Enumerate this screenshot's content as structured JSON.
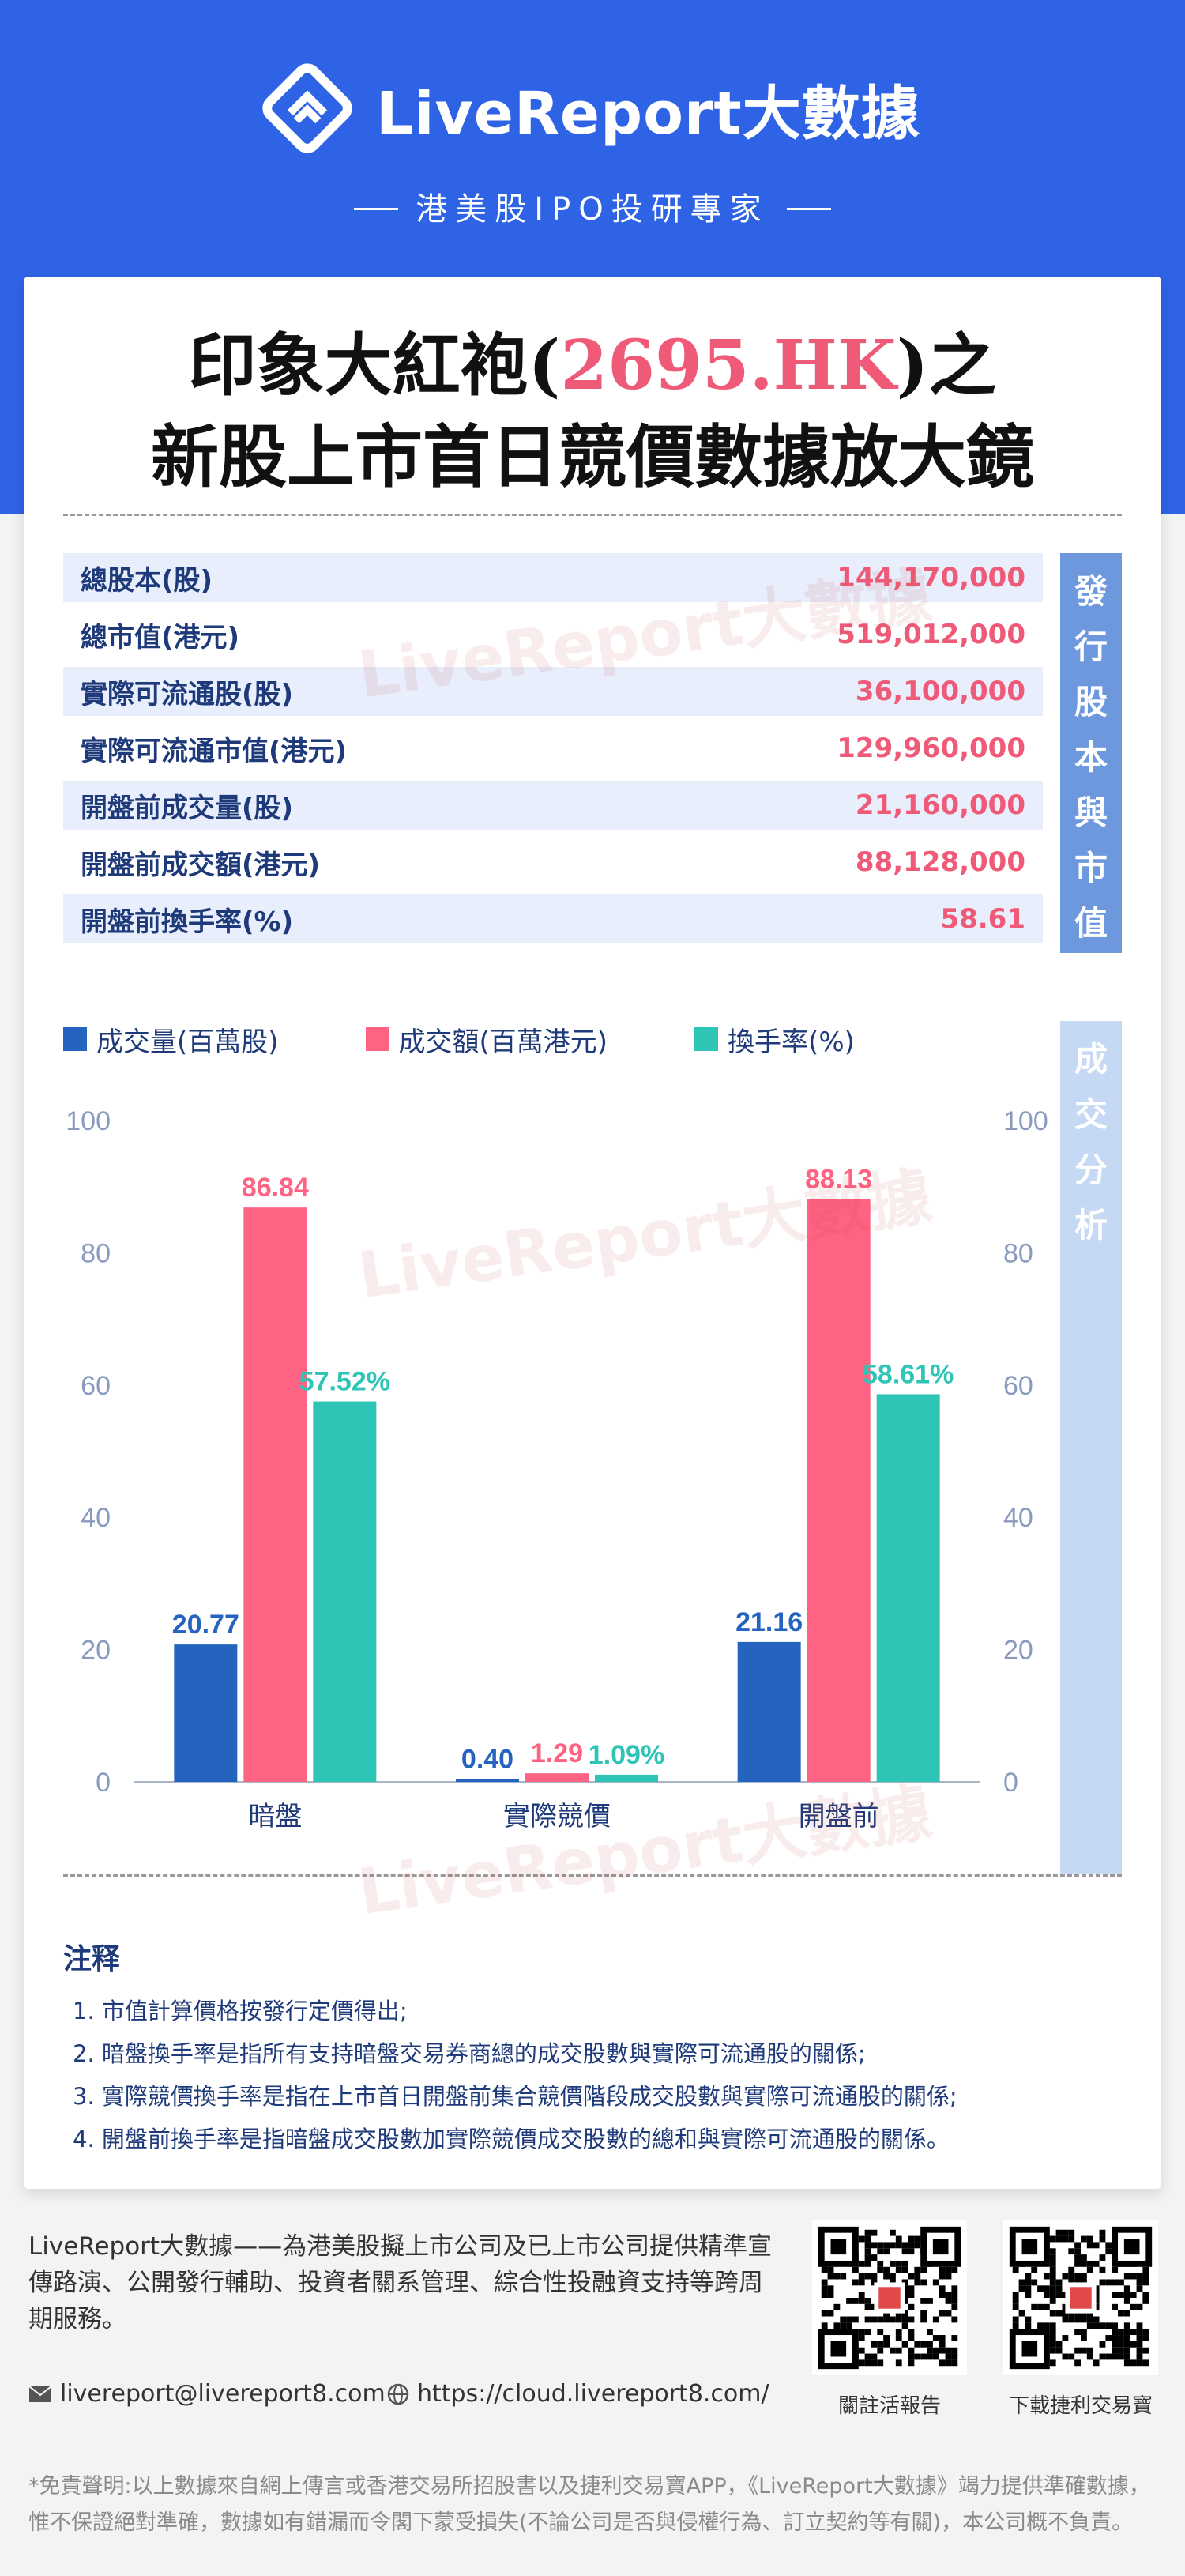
{
  "header": {
    "brand": "LiveReport大數據",
    "tagline": "港美股IPO投研專家",
    "logo_icon": "livereport-diamond-logo"
  },
  "title": {
    "line1_prefix": "印象大紅袍(",
    "line1_code": "2695.HK",
    "line1_suffix": ")之",
    "line2": "新股上市首日競價數據放大鏡"
  },
  "issuance": {
    "side_label": "發行股本與市值",
    "rows": [
      {
        "label": "總股本(股)",
        "value": "144,170,000"
      },
      {
        "label": "總市值(港元)",
        "value": "519,012,000"
      },
      {
        "label": "實際可流通股(股)",
        "value": "36,100,000"
      },
      {
        "label": "實際可流通市值(港元)",
        "value": "129,960,000"
      },
      {
        "label": "開盤前成交量(股)",
        "value": "21,160,000"
      },
      {
        "label": "開盤前成交額(港元)",
        "value": "88,128,000"
      },
      {
        "label": "開盤前換手率(%)",
        "value": "58.61"
      }
    ]
  },
  "chart_side_label": "成交分析",
  "chart_data": {
    "type": "bar",
    "categories": [
      "暗盤",
      "實際競價",
      "開盤前"
    ],
    "series": [
      {
        "name": "成交量(百萬股)",
        "values": [
          20.77,
          0.4,
          21.16
        ],
        "labels": [
          "20.77",
          "0.40",
          "21.16"
        ],
        "color": "#2563c0"
      },
      {
        "name": "成交額(百萬港元)",
        "values": [
          86.84,
          1.29,
          88.13
        ],
        "labels": [
          "86.84",
          "1.29",
          "88.13"
        ],
        "color": "#ff6384"
      },
      {
        "name": "換手率(%)",
        "values": [
          57.52,
          1.09,
          58.61
        ],
        "labels": [
          "57.52%",
          "1.09%",
          "58.61%"
        ],
        "color": "#2ec4b6"
      }
    ],
    "ylim": [
      0,
      100
    ],
    "yticks": [
      0,
      20,
      40,
      60,
      80,
      100
    ],
    "grid": false,
    "legend": "top-left"
  },
  "notes": {
    "title": "注释",
    "items": [
      "1. 市值計算價格按發行定價得出;",
      "2. 暗盤換手率是指所有支持暗盤交易券商總的成交股數與實際可流通股的關係;",
      "3. 實際競價換手率是指在上市首日開盤前集合競價階段成交股數與實際可流通股的關係;",
      "4. 開盤前換手率是指暗盤成交股數加實際競價成交股數的總和與實際可流通股的關係。"
    ]
  },
  "footer": {
    "intro": "LiveReport大數據——為港美股擬上市公司及已上市公司提供精準宣傳路演、公開發行輔助、投資者關系管理、綜合性投融資支持等跨周期服務。",
    "email": "livereport@livereport8.com",
    "website": "https://cloud.livereport8.com/",
    "qr1_label": "關註活報告",
    "qr2_label": "下載捷利交易寶",
    "disclaimer": "*免責聲明:以上數據來自網上傳言或香港交易所招股書以及捷利交易寶APP，《LiveReport大數據》竭力提供準確數據，惟不保證絕對準確，數據如有錯漏而令閣下蒙受損失(不論公司是否與侵權行為、訂立契約等有關)，本公司概不負責。"
  },
  "colors": {
    "brand_blue": "#2f63e6",
    "accent_pink": "#ee5a78",
    "navy": "#1e3a7a"
  }
}
